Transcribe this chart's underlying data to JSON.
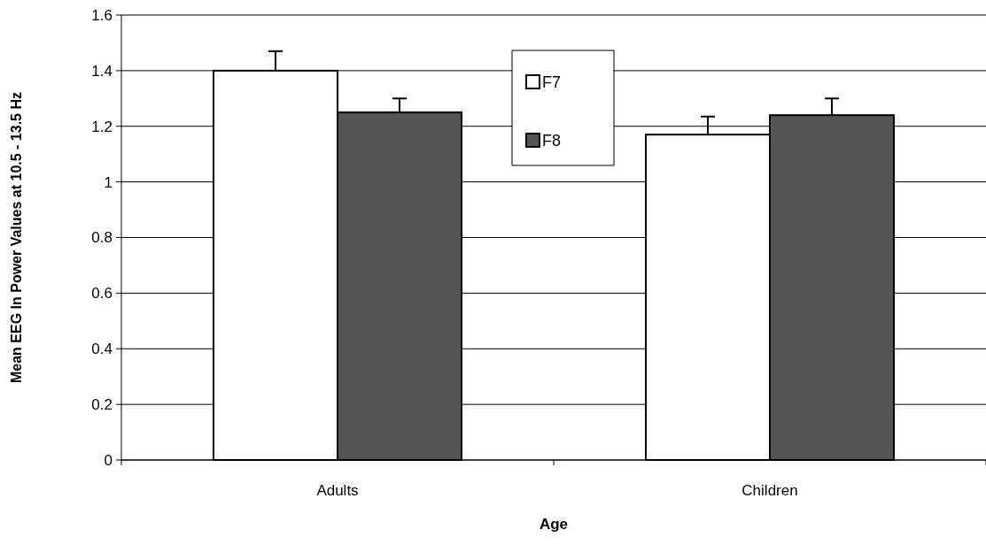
{
  "chart_data": {
    "type": "bar",
    "xlabel": "Age",
    "ylabel": "Mean EEG In Power Values at 10.5 - 13.5 Hz",
    "categories": [
      "Adults",
      "Children"
    ],
    "series": [
      {
        "name": "F7",
        "color": "#ffffff",
        "values": [
          1.4,
          1.17
        ],
        "errors": [
          0.07,
          0.065
        ]
      },
      {
        "name": "F8",
        "color": "#555555",
        "values": [
          1.25,
          1.24
        ],
        "errors": [
          0.05,
          0.06
        ]
      }
    ],
    "ylim": [
      0,
      1.6
    ],
    "yticks": [
      0,
      0.2,
      0.4,
      0.6,
      0.8,
      1,
      1.2,
      1.4,
      1.6
    ],
    "grid": "y",
    "legend": "top"
  }
}
